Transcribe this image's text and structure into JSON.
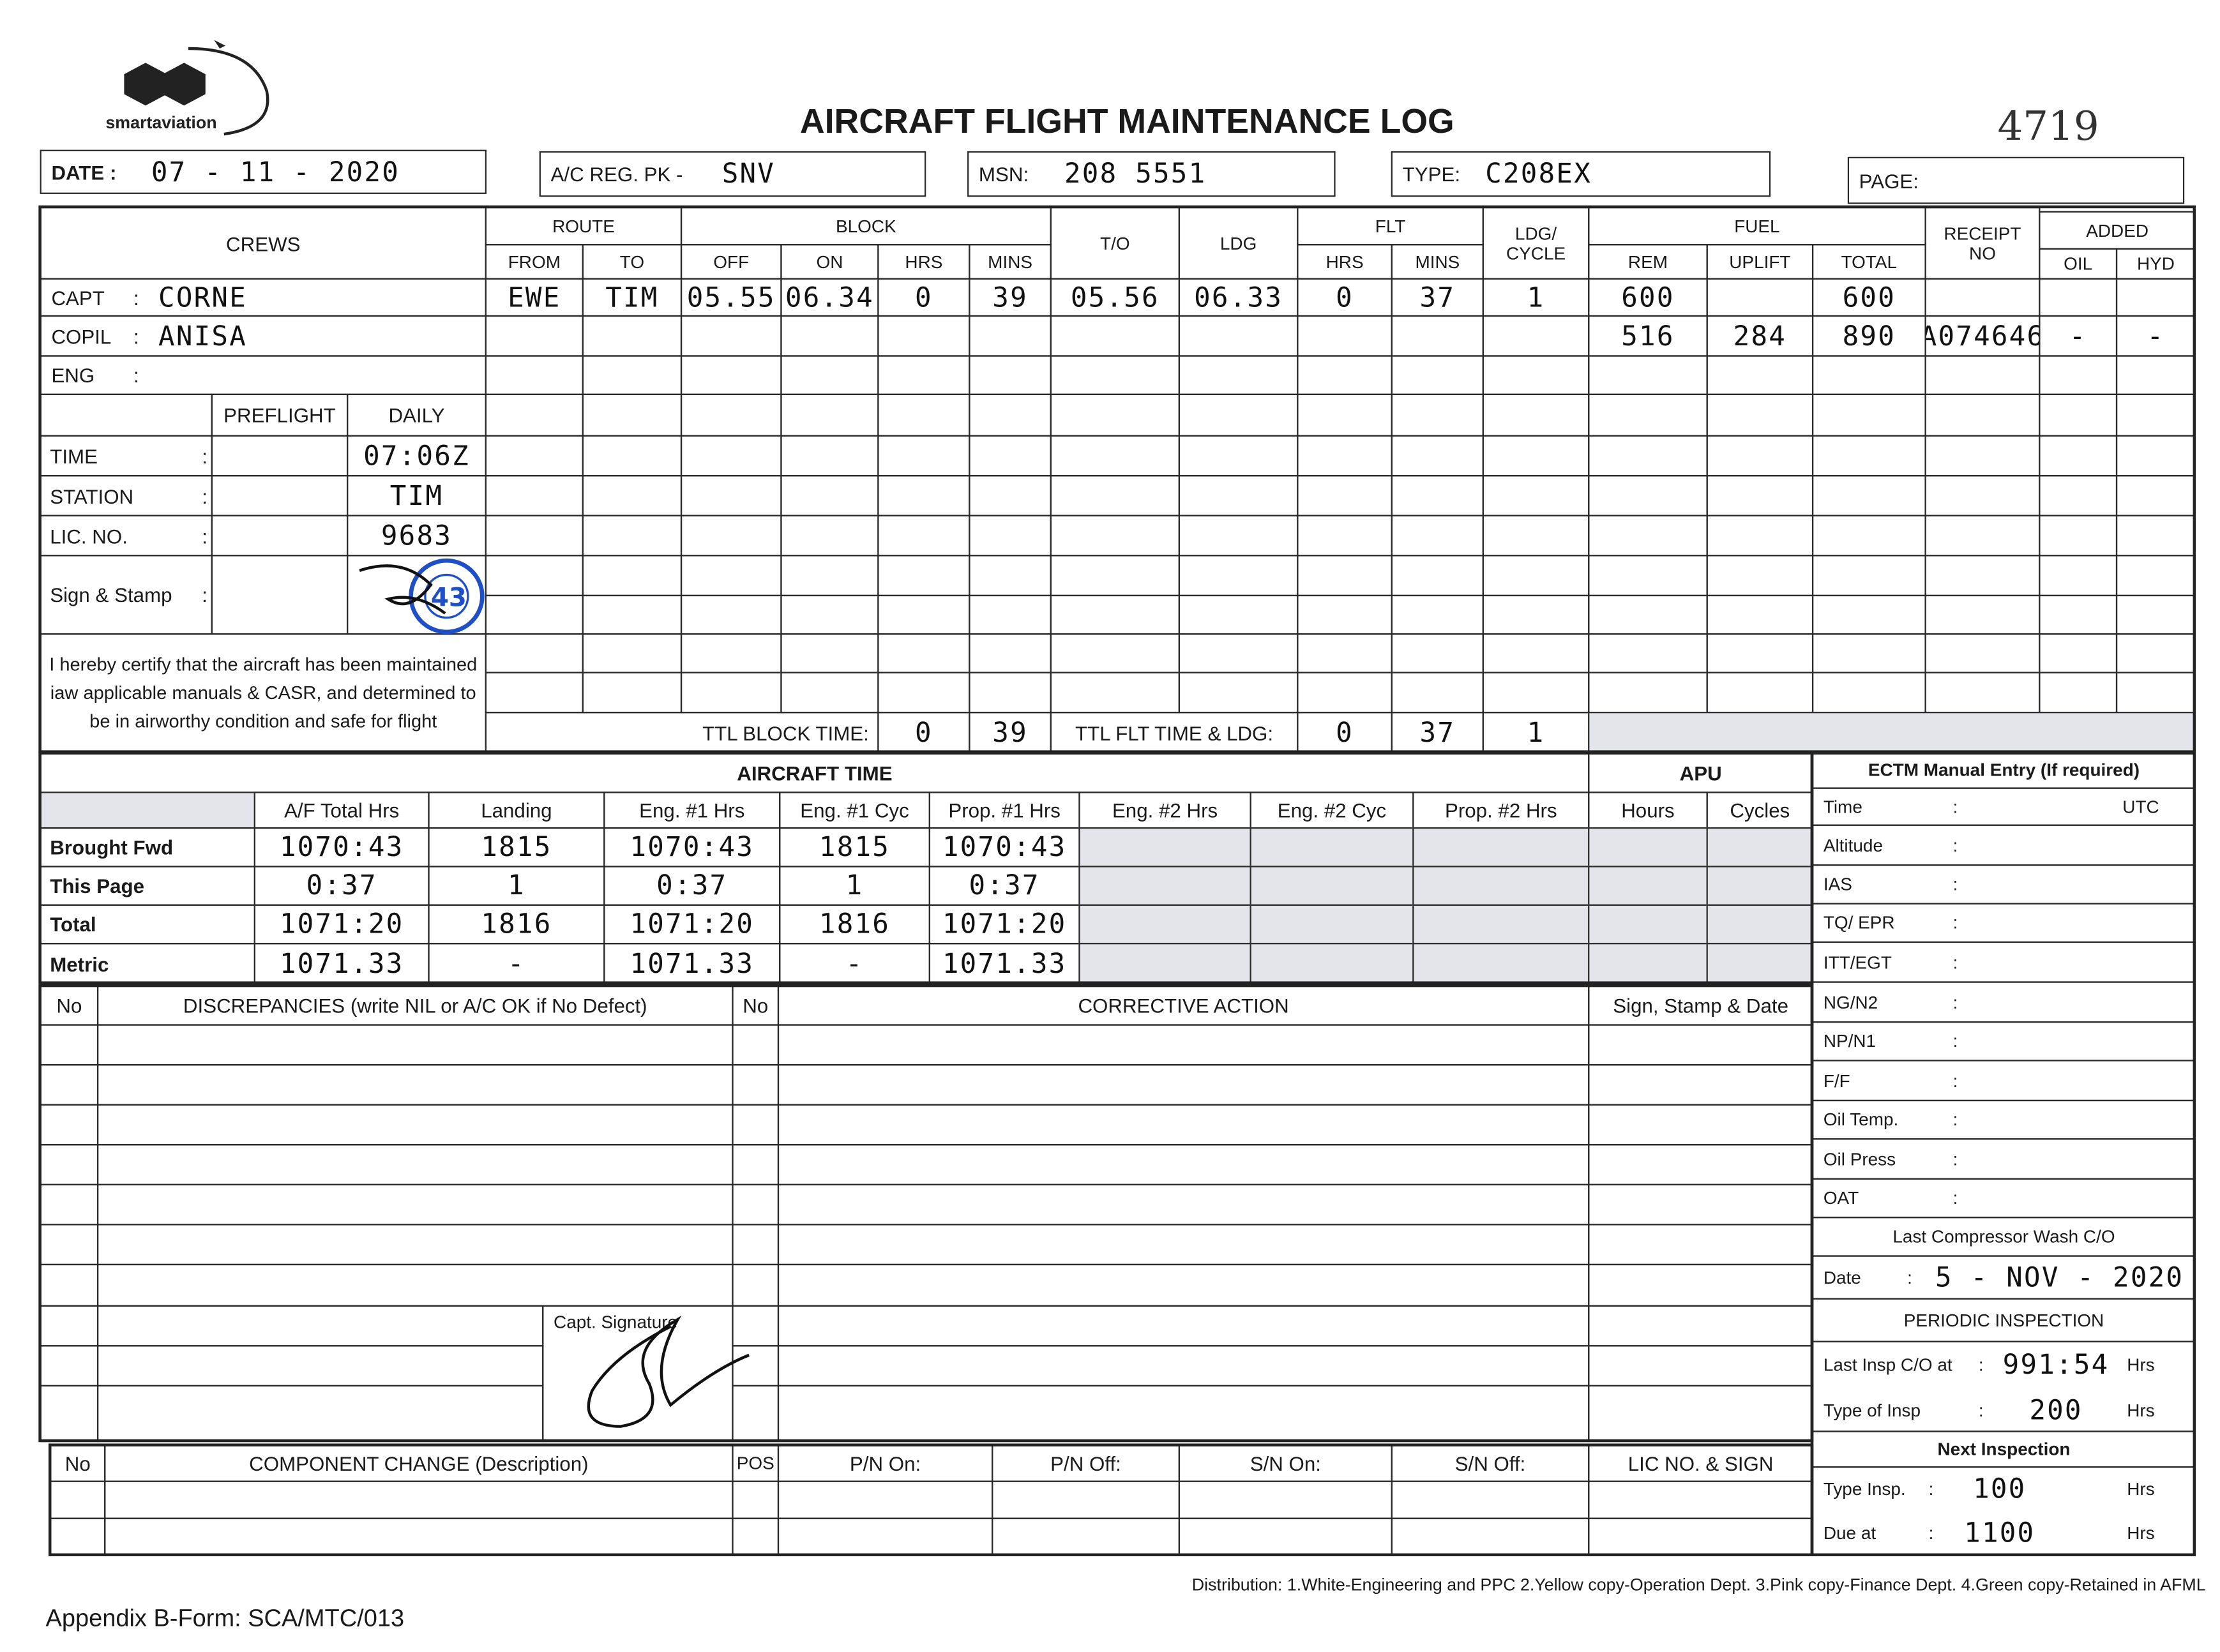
{
  "header": {
    "logo_text": "smartaviation",
    "title": "AIRCRAFT FLIGHT MAINTENANCE LOG",
    "serial": "4719",
    "date_label": "DATE :",
    "date": "07 - 11 - 2020",
    "reg_label": "A/C REG. PK -",
    "reg": "SNV",
    "msn_label": "MSN:",
    "msn": "208 5551",
    "type_label": "TYPE:",
    "type": "C208EX",
    "page_label": "PAGE:"
  },
  "crews": {
    "title": "CREWS",
    "sep": ":",
    "capt": {
      "label": "CAPT",
      "value": "CORNE"
    },
    "copil": {
      "label": "COPIL",
      "value": "ANISA"
    },
    "eng": {
      "label": "ENG",
      "value": ""
    },
    "preflight_label": "PREFLIGHT",
    "daily_label": "DAILY",
    "time": {
      "label": "TIME",
      "daily": "07:06Z"
    },
    "station": {
      "label": "STATION",
      "daily": "TIM"
    },
    "lic": {
      "label": "LIC. NO.",
      "daily": "9683"
    },
    "sign": {
      "label": "Sign & Stamp"
    },
    "certification": "I hereby certify that the aircraft has been maintained iaw applicable manuals & CASR, and determined to be in airworthy condition and safe for flight"
  },
  "flights": {
    "groups": {
      "route": "ROUTE",
      "block": "BLOCK",
      "to": "T/O",
      "ldg": "LDG",
      "flt": "FLT",
      "ldg_cycle_1": "LDG/",
      "ldg_cycle_2": "CYCLE",
      "fuel": "FUEL",
      "receipt_1": "RECEIPT",
      "receipt_2": "NO",
      "added": "ADDED"
    },
    "sub": {
      "from": "FROM",
      "to": "TO",
      "off": "OFF",
      "on": "ON",
      "hrs": "HRS",
      "mins": "MINS",
      "flt_hrs": "HRS",
      "flt_mins": "MINS",
      "rem": "REM",
      "uplift": "UPLIFT",
      "total": "TOTAL",
      "oil": "OIL",
      "hyd": "HYD"
    },
    "rows": [
      [
        "EWE",
        "TIM",
        "05.55",
        "06.34",
        "0",
        "39",
        "05.56",
        "06.33",
        "0",
        "37",
        "1",
        "600",
        "",
        "600",
        "",
        "",
        ""
      ],
      [
        "",
        "",
        "",
        "",
        "",
        "",
        "",
        "",
        "",
        "",
        "",
        "516",
        "284",
        "890",
        "A074646",
        "-",
        "-"
      ]
    ],
    "ttl_block_label": "TTL BLOCK TIME:",
    "ttl_block_hrs": "0",
    "ttl_block_mins": "39",
    "ttl_flt_label": "TTL FLT TIME & LDG:",
    "ttl_flt_hrs": "0",
    "ttl_flt_mins": "37",
    "ttl_ldg": "1"
  },
  "aircraft_time": {
    "title": "AIRCRAFT TIME",
    "apu_title": "APU",
    "columns": [
      "A/F Total Hrs",
      "Landing",
      "Eng. #1 Hrs",
      "Eng. #1 Cyc",
      "Prop. #1 Hrs",
      "Eng. #2 Hrs",
      "Eng. #2 Cyc",
      "Prop. #2 Hrs",
      "Hours",
      "Cycles"
    ],
    "rows": [
      {
        "label": "Brought Fwd",
        "values": [
          "1070:43",
          "1815",
          "1070:43",
          "1815",
          "1070:43",
          "",
          "",
          "",
          "",
          ""
        ]
      },
      {
        "label": "This Page",
        "values": [
          "0:37",
          "1",
          "0:37",
          "1",
          "0:37",
          "",
          "",
          "",
          "",
          ""
        ]
      },
      {
        "label": "Total",
        "values": [
          "1071:20",
          "1816",
          "1071:20",
          "1816",
          "1071:20",
          "",
          "",
          "",
          "",
          ""
        ]
      },
      {
        "label": "Metric",
        "values": [
          "1071.33",
          "-",
          "1071.33",
          "-",
          "1071.33",
          "",
          "",
          "",
          "",
          ""
        ]
      }
    ]
  },
  "ectm": {
    "title": "ECTM Manual Entry (If required)",
    "sep": ":",
    "utc": "UTC",
    "fields": [
      "Time",
      "Altitude",
      "IAS",
      "TQ/ EPR",
      "ITT/EGT",
      "NG/N2",
      "NP/N1",
      "F/F",
      "Oil Temp.",
      "Oil Press",
      "OAT"
    ],
    "compressor_wash_title": "Last Compressor Wash C/O",
    "compressor_wash_label": "Date",
    "compressor_wash_date": "5 - NOV - 2020",
    "periodic_title": "PERIODIC INSPECTION",
    "last_insp_label": "Last Insp C/O at",
    "last_insp_value": "991:54",
    "type_insp_label": "Type of Insp",
    "type_insp_value": "200",
    "next_title": "Next Inspection",
    "next_type_label": "Type Insp.",
    "next_type_value": "100",
    "due_label": "Due at",
    "due_value": "1100",
    "hrs": "Hrs"
  },
  "discrepancies": {
    "no": "No",
    "title": "DISCREPANCIES (write NIL or A/C OK if No Defect)",
    "no2": "No",
    "corrective": "CORRECTIVE ACTION",
    "sign": "Sign, Stamp & Date",
    "capt_signature": "Capt. Signature"
  },
  "component": {
    "no": "No",
    "title": "COMPONENT CHANGE (Description)",
    "pos": "POS",
    "pn_on": "P/N On:",
    "pn_off": "P/N Off:",
    "sn_on": "S/N On:",
    "sn_off": "S/N Off:",
    "lic": "LIC NO. & SIGN"
  },
  "footer": {
    "distribution": "Distribution: 1.White-Engineering and PPC  2.Yellow copy-Operation Dept.  3.Pink copy-Finance Dept.  4.Green copy-Retained in AFML",
    "appendix": "Appendix B-Form: SCA/MTC/013"
  }
}
